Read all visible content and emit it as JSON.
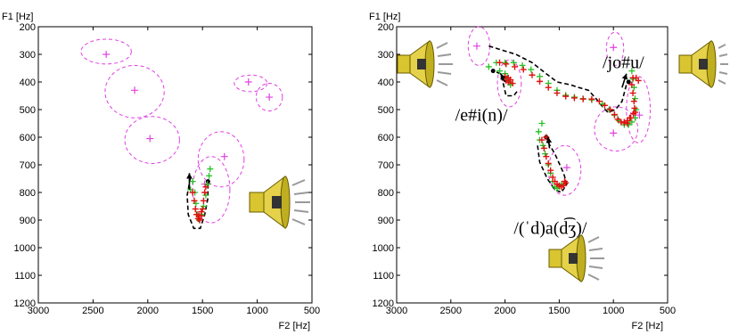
{
  "chart_data": [
    {
      "type": "scatter",
      "xlabel": "F2 [Hz]",
      "ylabel": "F1 [Hz]",
      "xlim": [
        3000,
        500
      ],
      "ylim": [
        200,
        1200
      ],
      "x_ticks": [
        "3000",
        "2500",
        "2000",
        "1500",
        "1000",
        "500"
      ],
      "y_ticks": [
        "200",
        "300",
        "400",
        "500",
        "600",
        "700",
        "800",
        "900",
        "1000",
        "1100",
        "1200"
      ],
      "vowel_targets": [
        {
          "f2": 2380,
          "f1": 300
        },
        {
          "f2": 2120,
          "f1": 430
        },
        {
          "f2": 1980,
          "f1": 605
        },
        {
          "f2": 1300,
          "f1": 670
        },
        {
          "f2": 1080,
          "f1": 400
        },
        {
          "f2": 890,
          "f1": 455
        },
        {
          "f2": 1480,
          "f1": 770
        }
      ],
      "ellipses": [
        {
          "cf2": 2380,
          "cf1": 290,
          "rf2": 230,
          "rf1": 45
        },
        {
          "cf2": 2120,
          "cf1": 435,
          "rf2": 270,
          "rf1": 95
        },
        {
          "cf2": 1960,
          "cf1": 610,
          "rf2": 250,
          "rf1": 85
        },
        {
          "cf2": 1330,
          "cf1": 680,
          "rf2": 210,
          "rf1": 100
        },
        {
          "cf2": 1060,
          "cf1": 405,
          "rf2": 150,
          "rf1": 30
        },
        {
          "cf2": 890,
          "cf1": 455,
          "rf2": 120,
          "rf1": 50
        },
        {
          "cf2": 1420,
          "cf1": 790,
          "rf2": 170,
          "rf1": 120
        }
      ],
      "trajectories": [
        {
          "green": [
            [
              1610,
              790
            ],
            [
              1590,
              760
            ],
            [
              1570,
              800
            ],
            [
              1560,
              840
            ],
            [
              1545,
              880
            ],
            [
              1530,
              900
            ],
            [
              1510,
              880
            ],
            [
              1490,
              850
            ],
            [
              1470,
              810
            ],
            [
              1455,
              770
            ],
            [
              1440,
              740
            ],
            [
              1430,
              715
            ]
          ],
          "red": [
            [
              1590,
              800
            ],
            [
              1575,
              830
            ],
            [
              1565,
              860
            ],
            [
              1555,
              880
            ],
            [
              1540,
              895
            ],
            [
              1525,
              900
            ],
            [
              1510,
              885
            ],
            [
              1500,
              860
            ],
            [
              1490,
              830
            ],
            [
              1480,
              800
            ],
            [
              1470,
              780
            ],
            [
              1510,
              870
            ],
            [
              1530,
              885
            ]
          ],
          "dashed": [
            [
              1610,
              745
            ],
            [
              1640,
              810
            ],
            [
              1630,
              880
            ],
            [
              1580,
              930
            ],
            [
              1520,
              930
            ],
            [
              1480,
              880
            ],
            [
              1450,
              820
            ],
            [
              1450,
              760
            ]
          ],
          "arrow": [
            [
              1620,
              790
            ],
            [
              1620,
              730
            ]
          ]
        }
      ]
    },
    {
      "type": "scatter",
      "xlabel": "F2 [Hz]",
      "ylabel": "F1 [Hz]",
      "xlim": [
        3000,
        500
      ],
      "ylim": [
        200,
        1200
      ],
      "x_ticks": [
        "3000",
        "2500",
        "2000",
        "1500",
        "1000",
        "500"
      ],
      "y_ticks": [
        "200",
        "300",
        "400",
        "500",
        "600",
        "700",
        "800",
        "900",
        "1000",
        "1100",
        "1200"
      ],
      "vowel_targets": [
        {
          "f2": 2260,
          "f1": 270
        },
        {
          "f2": 1960,
          "f1": 400
        },
        {
          "f2": 1430,
          "f1": 710
        },
        {
          "f2": 1000,
          "f1": 585
        },
        {
          "f2": 1000,
          "f1": 275
        },
        {
          "f2": 760,
          "f1": 520
        }
      ],
      "ellipses": [
        {
          "cf2": 2240,
          "cf1": 270,
          "rf2": 100,
          "rf1": 70
        },
        {
          "cf2": 1960,
          "cf1": 405,
          "rf2": 110,
          "rf1": 85
        },
        {
          "cf2": 1450,
          "cf1": 720,
          "rf2": 150,
          "rf1": 90
        },
        {
          "cf2": 975,
          "cf1": 570,
          "rf2": 200,
          "rf1": 80
        },
        {
          "cf2": 985,
          "cf1": 280,
          "rf2": 80,
          "rf1": 60
        },
        {
          "cf2": 770,
          "cf1": 500,
          "rf2": 110,
          "rf1": 120
        }
      ],
      "labels": [
        {
          "text": "/jo#u/",
          "f2": 1100,
          "f1": 350
        },
        {
          "text": "/e#i(n)/",
          "f2": 2460,
          "f1": 540
        },
        {
          "text": "/(ˈd)a(d͡ʒ)/",
          "f2": 1920,
          "f1": 950
        }
      ],
      "trajectories": [
        {
          "green": [
            [
              2150,
              345
            ],
            [
              2080,
              330
            ],
            [
              2000,
              330
            ],
            [
              1920,
              330
            ],
            [
              1840,
              340
            ],
            [
              1760,
              355
            ],
            [
              1680,
              380
            ],
            [
              1600,
              405
            ],
            [
              1520,
              430
            ],
            [
              1440,
              448
            ],
            [
              1360,
              455
            ],
            [
              1280,
              460
            ],
            [
              1200,
              465
            ],
            [
              1100,
              480
            ],
            [
              1040,
              500
            ],
            [
              990,
              520
            ],
            [
              950,
              540
            ],
            [
              900,
              555
            ],
            [
              860,
              555
            ],
            [
              830,
              545
            ],
            [
              800,
              530
            ],
            [
              790,
              500
            ],
            [
              800,
              460
            ],
            [
              810,
              420
            ],
            [
              820,
              390
            ],
            [
              830,
              360
            ]
          ],
          "red": [
            [
              2050,
              330
            ],
            [
              1990,
              335
            ],
            [
              1910,
              345
            ],
            [
              1830,
              355
            ],
            [
              1750,
              375
            ],
            [
              1680,
              398
            ],
            [
              1600,
              420
            ],
            [
              1520,
              440
            ],
            [
              1440,
              452
            ],
            [
              1360,
              458
            ],
            [
              1280,
              462
            ],
            [
              1200,
              462
            ],
            [
              1130,
              470
            ],
            [
              1080,
              485
            ],
            [
              1030,
              500
            ],
            [
              990,
              518
            ],
            [
              960,
              535
            ],
            [
              930,
              545
            ],
            [
              900,
              548
            ],
            [
              870,
              540
            ],
            [
              840,
              530
            ],
            [
              815,
              515
            ],
            [
              805,
              495
            ],
            [
              810,
              470
            ],
            [
              820,
              440
            ],
            [
              830,
              410
            ],
            [
              820,
              385
            ],
            [
              790,
              385
            ],
            [
              770,
              395
            ],
            [
              800,
              510
            ],
            [
              850,
              530
            ],
            [
              870,
              550
            ],
            [
              900,
              545
            ]
          ],
          "dashed": [
            [
              2150,
              270
            ],
            [
              1900,
              300
            ],
            [
              1750,
              330
            ],
            [
              1620,
              370
            ],
            [
              1520,
              400
            ],
            [
              1400,
              410
            ],
            [
              1320,
              420
            ],
            [
              1230,
              430
            ],
            [
              1160,
              460
            ],
            [
              1100,
              490
            ],
            [
              1050,
              510
            ],
            [
              980,
              500
            ],
            [
              920,
              470
            ],
            [
              880,
              410
            ],
            [
              860,
              400
            ]
          ],
          "arrow": [
            [
              920,
              420
            ],
            [
              880,
              370
            ]
          ]
        },
        {
          "green": [
            [
              2050,
              360
            ],
            [
              2000,
              370
            ],
            [
              1980,
              385
            ],
            [
              1960,
              400
            ],
            [
              1950,
              410
            ]
          ],
          "red": [
            [
              2000,
              380
            ],
            [
              1970,
              385
            ],
            [
              1950,
              392
            ],
            [
              1930,
              405
            ],
            [
              1970,
              400
            ],
            [
              1990,
              395
            ]
          ],
          "dashed": [
            [
              1890,
              435
            ],
            [
              1920,
              450
            ],
            [
              1990,
              450
            ],
            [
              2020,
              400
            ],
            [
              2040,
              370
            ],
            [
              2110,
              360
            ]
          ],
          "arrow": [
            [
              2000,
              400
            ],
            [
              2040,
              370
            ]
          ]
        },
        {
          "green": [
            [
              1680,
              610
            ],
            [
              1650,
              630
            ],
            [
              1630,
              660
            ],
            [
              1600,
              700
            ],
            [
              1580,
              730
            ],
            [
              1560,
              760
            ],
            [
              1540,
              780
            ],
            [
              1520,
              785
            ],
            [
              1500,
              780
            ],
            [
              1480,
              770
            ],
            [
              1690,
              580
            ],
            [
              1660,
              550
            ]
          ],
          "red": [
            [
              1660,
              610
            ],
            [
              1640,
              640
            ],
            [
              1620,
              670
            ],
            [
              1600,
              695
            ],
            [
              1580,
              720
            ],
            [
              1560,
              745
            ],
            [
              1540,
              760
            ],
            [
              1520,
              770
            ],
            [
              1500,
              775
            ],
            [
              1480,
              780
            ],
            [
              1460,
              775
            ],
            [
              1450,
              760
            ],
            [
              1440,
              765
            ],
            [
              1620,
              600
            ]
          ],
          "dashed": [
            [
              1700,
              630
            ],
            [
              1680,
              690
            ],
            [
              1610,
              750
            ],
            [
              1540,
              790
            ],
            [
              1480,
              800
            ],
            [
              1430,
              770
            ],
            [
              1460,
              730
            ],
            [
              1540,
              660
            ],
            [
              1600,
              620
            ],
            [
              1620,
              600
            ]
          ],
          "arrow": [
            [
              1590,
              640
            ],
            [
              1600,
              600
            ]
          ]
        }
      ]
    }
  ]
}
